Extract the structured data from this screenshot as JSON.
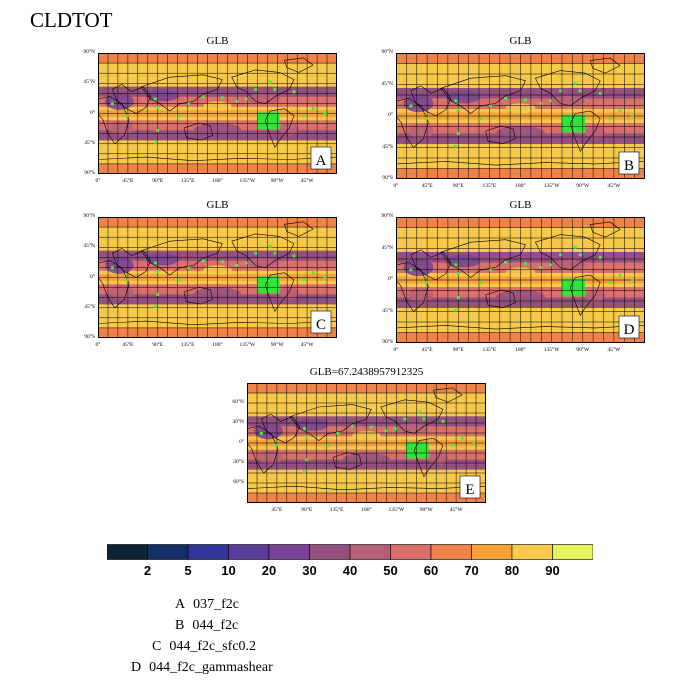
{
  "title": "CLDTOT",
  "chart_data": [
    {
      "type": "heatmap",
      "panel": "A",
      "title": "GLB",
      "y_ticks": [
        "90°N",
        "45°N",
        "0°",
        "45°S",
        "90°S"
      ],
      "x_ticks": [
        "0°",
        "45°E",
        "90°E",
        "135°E",
        "180°",
        "135°W",
        "90°W",
        "45°W"
      ],
      "label": "A"
    },
    {
      "type": "heatmap",
      "panel": "B",
      "title": "GLB",
      "y_ticks": [
        "90°N",
        "45°N",
        "0°",
        "45°S",
        "90°S"
      ],
      "x_ticks": [
        "0°",
        "45°E",
        "90°E",
        "135°E",
        "180°",
        "135°W",
        "90°W",
        "45°W"
      ],
      "label": "B"
    },
    {
      "type": "heatmap",
      "panel": "C",
      "title": "GLB",
      "y_ticks": [
        "90°N",
        "45°N",
        "0°",
        "45°S",
        "90°S"
      ],
      "x_ticks": [
        "0°",
        "45°E",
        "90°E",
        "135°E",
        "180°",
        "135°W",
        "90°W",
        "45°W"
      ],
      "label": "C"
    },
    {
      "type": "heatmap",
      "panel": "D",
      "title": "GLB",
      "y_ticks": [
        "90°N",
        "45°N",
        "0°",
        "45°S",
        "90°S"
      ],
      "x_ticks": [
        "0°",
        "45°E",
        "90°E",
        "135°E",
        "180°",
        "135°W",
        "90°W",
        "45°W"
      ],
      "label": "D"
    },
    {
      "type": "heatmap",
      "panel": "E",
      "title": "GLB=67.2438957912325",
      "y_ticks": [
        "60°N",
        "30°N",
        "0°",
        "30°S",
        "60°S"
      ],
      "x_ticks": [
        "45°E",
        "90°E",
        "135°E",
        "180°",
        "135°W",
        "90°W",
        "45°W"
      ],
      "label": "E"
    }
  ],
  "colorbar": {
    "levels": [
      "2",
      "5",
      "10",
      "20",
      "30",
      "40",
      "50",
      "60",
      "70",
      "80",
      "90"
    ],
    "colors": [
      "#0f2333",
      "#142f66",
      "#34349b",
      "#583c98",
      "#784493",
      "#94517f",
      "#b85f78",
      "#d9706a",
      "#ee8249",
      "#f6a23a",
      "#f6c94a",
      "#e7f35c"
    ]
  },
  "legend": [
    {
      "letter": "A",
      "name": "037_f2c"
    },
    {
      "letter": "B",
      "name": "044_f2c"
    },
    {
      "letter": "C",
      "name": "044_f2c_sfc0.2"
    },
    {
      "letter": "D",
      "name": "044_f2c_gammashear"
    }
  ]
}
